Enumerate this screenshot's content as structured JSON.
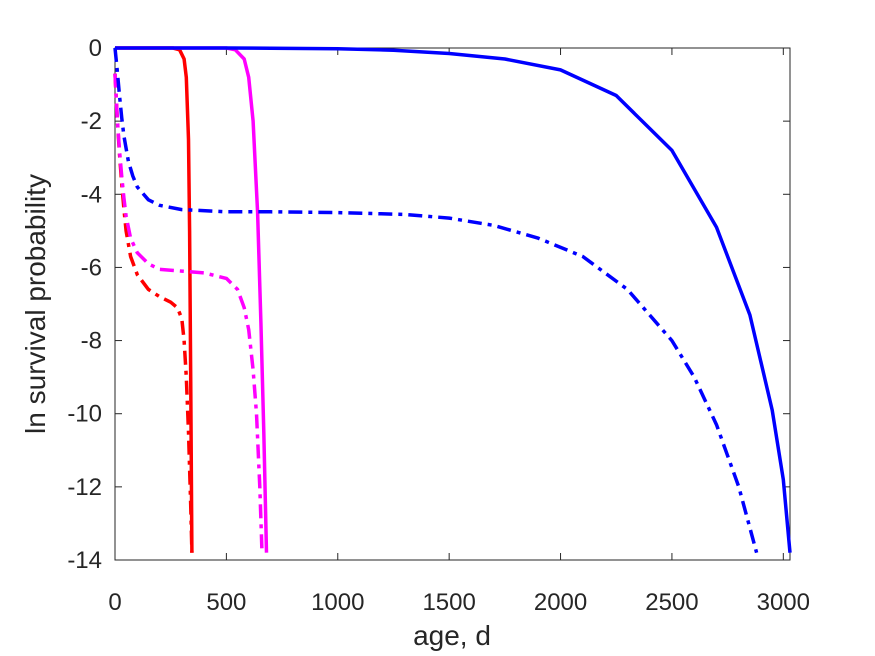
{
  "chart_data": {
    "type": "line",
    "title": "",
    "xlabel": "age, d",
    "ylabel": "ln survival probability",
    "xlim": [
      0,
      3030
    ],
    "ylim": [
      -14,
      0
    ],
    "x_ticks": [
      0,
      500,
      1000,
      1500,
      2000,
      2500,
      3000
    ],
    "y_ticks": [
      0,
      -2,
      -4,
      -6,
      -8,
      -10,
      -12,
      -14
    ],
    "x_tick_labels": [
      "0",
      "500",
      "1000",
      "1500",
      "2000",
      "2500",
      "3000"
    ],
    "y_tick_labels": [
      "0",
      "-2",
      "-4",
      "-6",
      "-8",
      "-10",
      "-12",
      "-14"
    ],
    "grid": false,
    "legend": "none",
    "series": [
      {
        "color": "#ff0000",
        "style": "solid",
        "x": [
          0,
          260,
          290,
          310,
          320,
          330,
          335,
          340,
          345
        ],
        "y": [
          0,
          0,
          -0.05,
          -0.3,
          -0.8,
          -2.5,
          -5,
          -9,
          -13.8
        ]
      },
      {
        "color": "#ff00ff",
        "style": "solid",
        "x": [
          0,
          500,
          540,
          580,
          600,
          620,
          640,
          655,
          668,
          680
        ],
        "y": [
          0,
          0,
          -0.05,
          -0.3,
          -0.8,
          -2,
          -4.5,
          -7.5,
          -10.5,
          -13.8
        ]
      },
      {
        "color": "#0000ff",
        "style": "solid",
        "x": [
          0,
          500,
          1000,
          1250,
          1500,
          1750,
          2000,
          2250,
          2500,
          2700,
          2850,
          2950,
          3000,
          3030
        ],
        "y": [
          0,
          0,
          -0.02,
          -0.06,
          -0.15,
          -0.3,
          -0.6,
          -1.3,
          -2.8,
          -4.9,
          -7.3,
          -9.9,
          -11.8,
          -13.8
        ]
      },
      {
        "color": "#ff0000",
        "style": "dashdot",
        "x": [
          0,
          10,
          20,
          30,
          40,
          50,
          70,
          100,
          150,
          200,
          250,
          280,
          300,
          310,
          320,
          330,
          340,
          345
        ],
        "y": [
          -0.7,
          -1.9,
          -2.9,
          -3.7,
          -4.4,
          -5.0,
          -5.7,
          -6.2,
          -6.6,
          -6.8,
          -6.95,
          -7.1,
          -7.4,
          -8,
          -9,
          -10.5,
          -12.5,
          -13.8
        ]
      },
      {
        "color": "#ff00ff",
        "style": "dashdot",
        "x": [
          0,
          10,
          20,
          30,
          40,
          50,
          70,
          100,
          150,
          200,
          300,
          400,
          500,
          550,
          580,
          600,
          620,
          635,
          650,
          660
        ],
        "y": [
          -0.7,
          -1.9,
          -2.8,
          -3.5,
          -4.1,
          -4.6,
          -5.2,
          -5.6,
          -5.9,
          -6.05,
          -6.1,
          -6.15,
          -6.3,
          -6.6,
          -7.1,
          -7.7,
          -8.8,
          -10,
          -12,
          -13.8
        ]
      },
      {
        "color": "#0000ff",
        "style": "dashdot",
        "x": [
          0,
          10,
          20,
          30,
          40,
          60,
          80,
          100,
          150,
          200,
          300,
          500,
          700,
          1000,
          1300,
          1500,
          1700,
          1900,
          2100,
          2300,
          2500,
          2600,
          2700,
          2800,
          2880
        ],
        "y": [
          0,
          -0.6,
          -1.3,
          -1.9,
          -2.4,
          -3.1,
          -3.5,
          -3.8,
          -4.15,
          -4.3,
          -4.42,
          -4.48,
          -4.48,
          -4.5,
          -4.55,
          -4.65,
          -4.85,
          -5.2,
          -5.7,
          -6.6,
          -8.0,
          -9.0,
          -10.3,
          -12.0,
          -13.8
        ]
      }
    ]
  }
}
